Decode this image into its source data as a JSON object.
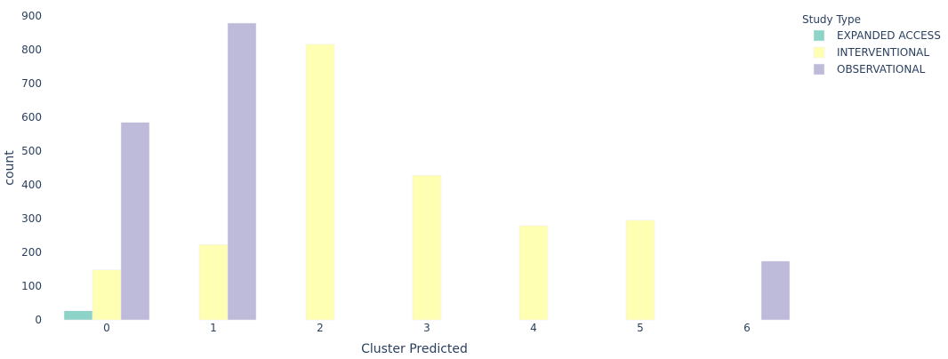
{
  "chart_data": {
    "type": "bar",
    "barmode": "group",
    "xlabel": "Cluster Predicted",
    "ylabel": "count",
    "categories": [
      "0",
      "1",
      "2",
      "3",
      "4",
      "5",
      "6"
    ],
    "ylim": [
      0,
      900
    ],
    "yticks": [
      0,
      100,
      200,
      300,
      400,
      500,
      600,
      700,
      800,
      900
    ],
    "grid": false,
    "legend": {
      "title": "Study Type",
      "position": "top-right"
    },
    "series": [
      {
        "name": "EXPANDED ACCESS",
        "color": "#8dd3c7",
        "values": [
          27,
          null,
          null,
          null,
          null,
          null,
          null
        ]
      },
      {
        "name": "INTERVENTIONAL",
        "color": "#ffffb3",
        "values": [
          148,
          223,
          816,
          428,
          279,
          295,
          null
        ]
      },
      {
        "name": "OBSERVATIONAL",
        "color": "#bebada",
        "values": [
          585,
          879,
          null,
          null,
          null,
          null,
          174
        ]
      }
    ]
  }
}
